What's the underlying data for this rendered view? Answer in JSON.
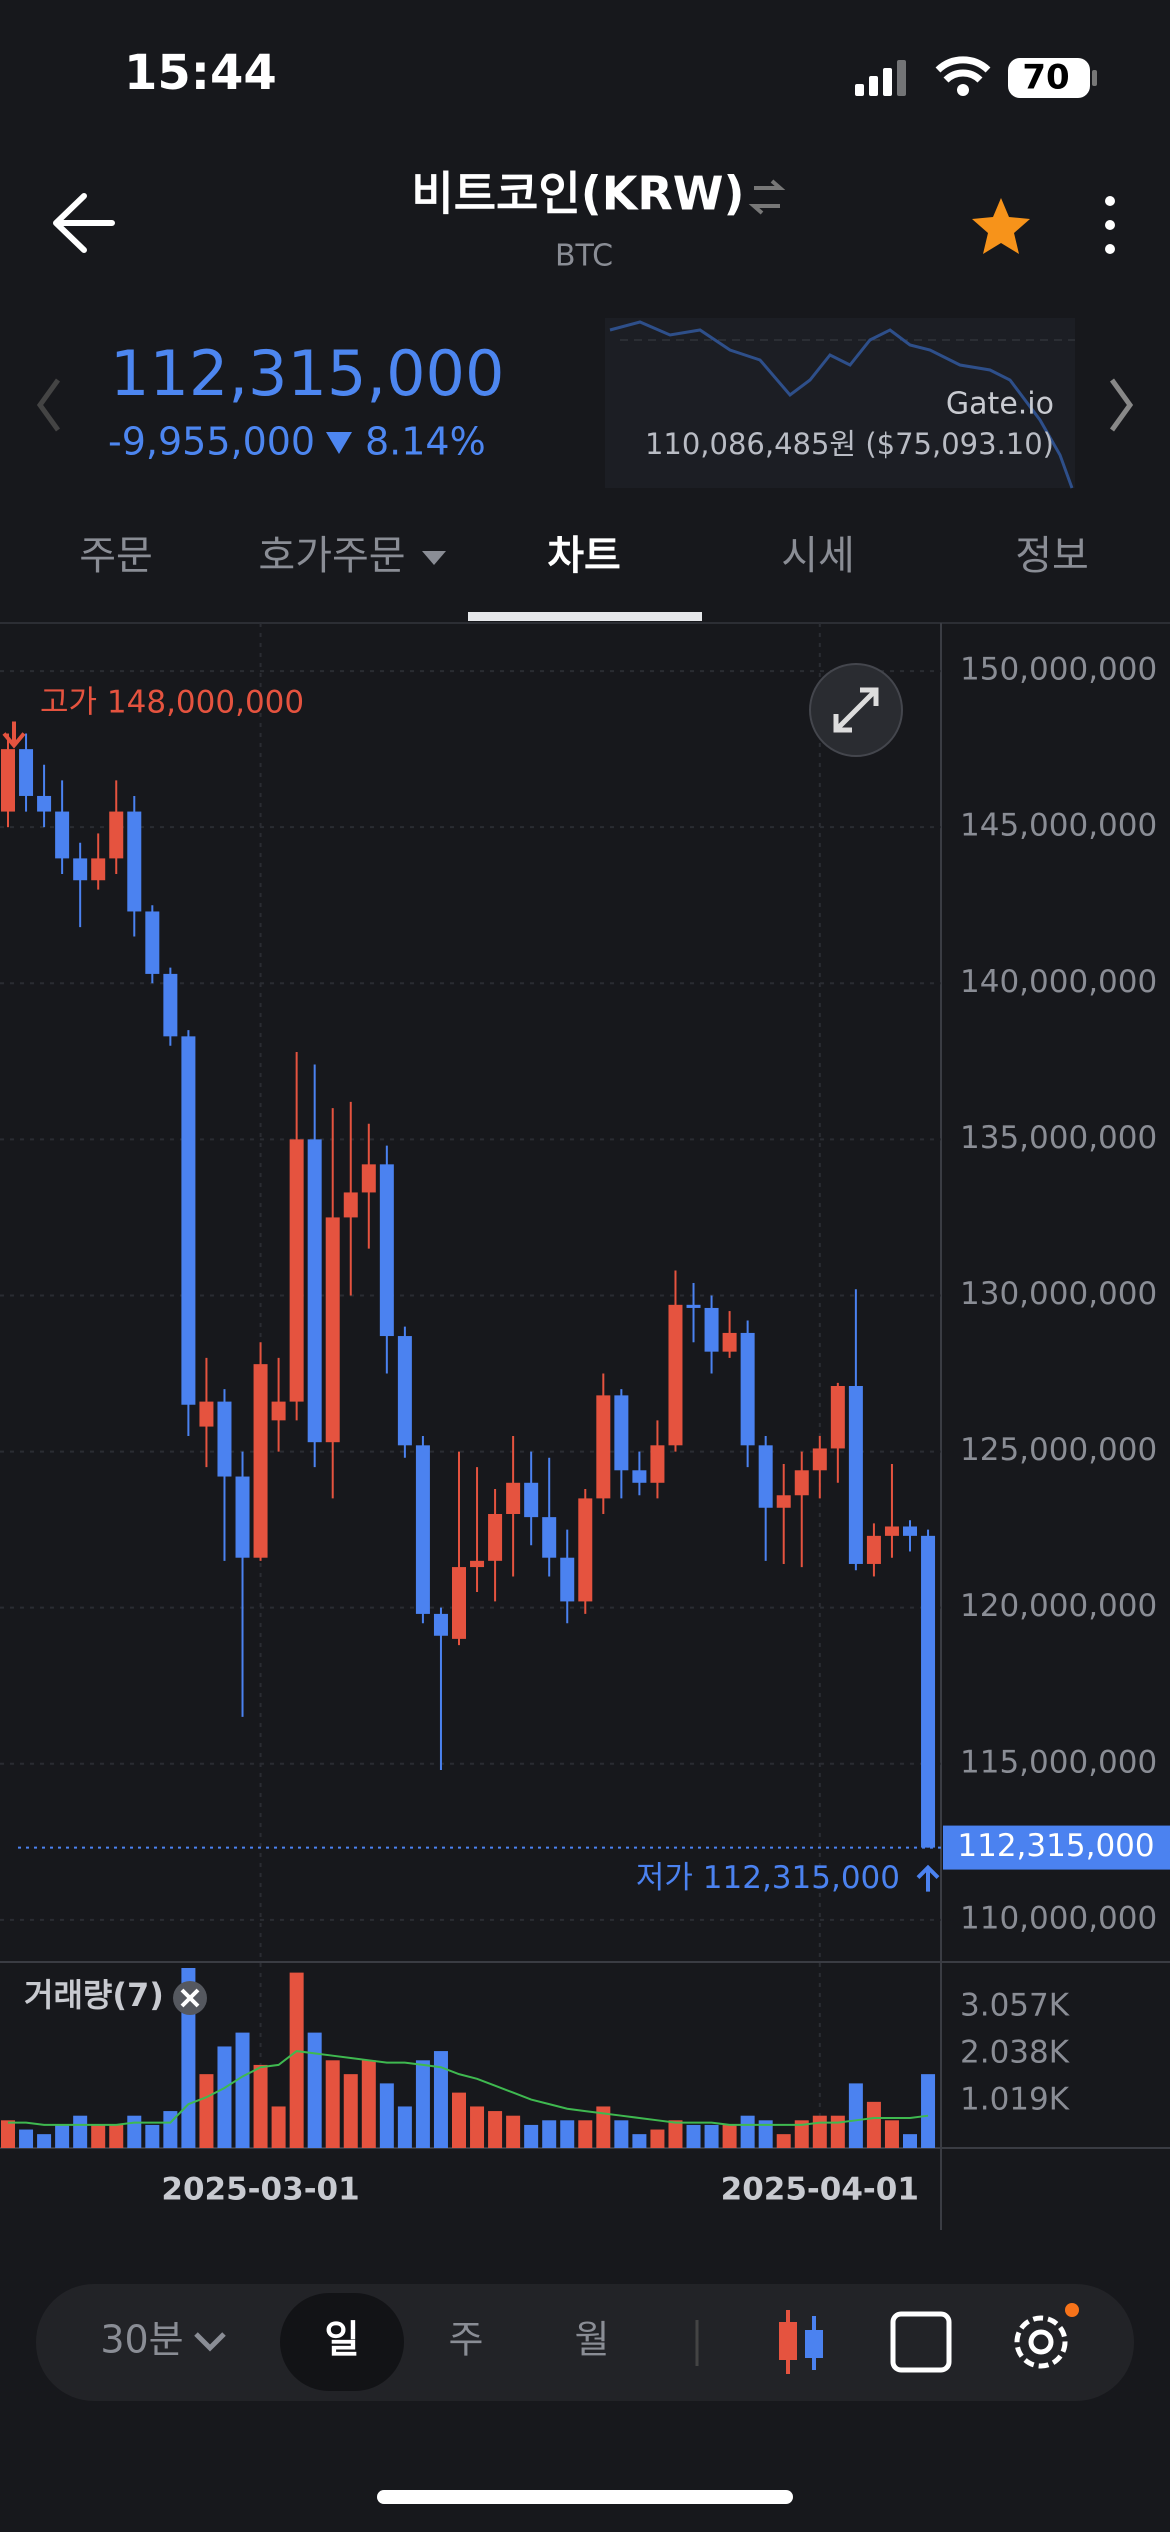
{
  "status_bar": {
    "time": "15:44",
    "battery": "70"
  },
  "header": {
    "title": "비트코인(KRW)",
    "subtitle": "BTC"
  },
  "price": {
    "current": "112,315,000",
    "change": "-9,955,000",
    "change_pct": "8.14%",
    "exchange": "Gate.io",
    "exchange_price": "110,086,485원 ($75,093.10)"
  },
  "tabs": [
    "주문",
    "호가주문",
    "차트",
    "시세",
    "정보"
  ],
  "toolbar": {
    "interval": "30분",
    "periods": [
      "일",
      "주",
      "월"
    ]
  },
  "chart_data": {
    "type": "candlestick",
    "categories": [
      null,
      null,
      null,
      null,
      null,
      null,
      null,
      null,
      null,
      null,
      null,
      null,
      null,
      null,
      "2025-03-01",
      null,
      null,
      null,
      null,
      null,
      null,
      null,
      null,
      null,
      null,
      null,
      null,
      null,
      null,
      null,
      null,
      null,
      null,
      null,
      null,
      null,
      null,
      null,
      null,
      null,
      null,
      null,
      null,
      null,
      null,
      "2025-04-01",
      null,
      null,
      null,
      null,
      null,
      null
    ],
    "open": [
      145500000,
      147500000,
      146000000,
      145500000,
      144000000,
      143300000,
      144000000,
      145500000,
      142300000,
      140300000,
      138300000,
      125800000,
      126600000,
      124200000,
      121600000,
      126000000,
      126600000,
      135000000,
      125300000,
      132500000,
      133300000,
      134200000,
      128700000,
      125200000,
      119800000,
      119000000,
      121300000,
      121500000,
      123000000,
      124000000,
      122900000,
      121600000,
      120200000,
      123500000,
      126800000,
      124400000,
      124000000,
      125200000,
      129700000,
      129600000,
      128200000,
      128800000,
      125200000,
      123200000,
      123600000,
      124400000,
      125100000,
      127100000,
      121400000,
      122300000,
      122600000,
      122300000
    ],
    "high": [
      148000000,
      148000000,
      147000000,
      146500000,
      144500000,
      144800000,
      146500000,
      146000000,
      142500000,
      140500000,
      138500000,
      128000000,
      127000000,
      125000000,
      128500000,
      128000000,
      137800000,
      137400000,
      136000000,
      136200000,
      135500000,
      134800000,
      129000000,
      125500000,
      120000000,
      125000000,
      124500000,
      123800000,
      125500000,
      125000000,
      124800000,
      122500000,
      123800000,
      127500000,
      127000000,
      125000000,
      126000000,
      130800000,
      130400000,
      130000000,
      129500000,
      129200000,
      125500000,
      124600000,
      125000000,
      125500000,
      127200000,
      130200000,
      122700000,
      124600000,
      122800000,
      122500000
    ],
    "low": [
      145000000,
      145500000,
      145000000,
      143500000,
      141800000,
      143000000,
      143500000,
      141500000,
      140000000,
      138000000,
      125500000,
      124500000,
      121500000,
      116500000,
      121500000,
      125000000,
      126000000,
      124500000,
      123500000,
      130000000,
      131500000,
      127500000,
      124800000,
      119500000,
      114800000,
      118800000,
      120500000,
      120200000,
      121000000,
      122000000,
      121000000,
      119500000,
      119800000,
      123000000,
      123500000,
      123600000,
      123500000,
      125000000,
      128500000,
      127500000,
      128000000,
      124500000,
      121500000,
      121400000,
      121300000,
      123500000,
      124000000,
      121200000,
      121000000,
      121600000,
      121800000,
      112315000
    ],
    "close": [
      147500000,
      146000000,
      145500000,
      144000000,
      143300000,
      144000000,
      145500000,
      142300000,
      140300000,
      138300000,
      126500000,
      126600000,
      124200000,
      121600000,
      127800000,
      126600000,
      135000000,
      125300000,
      132500000,
      133300000,
      134200000,
      128700000,
      125200000,
      119800000,
      119100000,
      121300000,
      121500000,
      123000000,
      124000000,
      122900000,
      121600000,
      120200000,
      123500000,
      126800000,
      124400000,
      124000000,
      125200000,
      129700000,
      129600000,
      128200000,
      128800000,
      125200000,
      123200000,
      123600000,
      124400000,
      125100000,
      127100000,
      121400000,
      122300000,
      122600000,
      122300000,
      112315000
    ],
    "up_color": "#e5533f",
    "down_color": "#4b82f0",
    "ylim": [
      108650000,
      151540000
    ],
    "yticks": [
      {
        "value": 110000000,
        "label": "110,000,000"
      },
      {
        "value": 115000000,
        "label": "115,000,000"
      },
      {
        "value": 120000000,
        "label": "120,000,000"
      },
      {
        "value": 125000000,
        "label": "125,000,000"
      },
      {
        "value": 130000000,
        "label": "130,000,000"
      },
      {
        "value": 135000000,
        "label": "135,000,000"
      },
      {
        "value": 140000000,
        "label": "140,000,000"
      },
      {
        "value": 145000000,
        "label": "145,000,000"
      },
      {
        "value": 150000000,
        "label": "150,000,000"
      }
    ],
    "grid": true,
    "high_annotation": {
      "value": 148000000,
      "label": "고가 148,000,000"
    },
    "low_annotation": {
      "value": 112315000,
      "label": "저가 112,315,000"
    },
    "last_price": {
      "value": 112315000,
      "label": "112,315,000"
    },
    "volume": {
      "title": "거래량(7)",
      "values": [
        0.6,
        0.4,
        0.3,
        0.5,
        0.7,
        0.5,
        0.5,
        0.7,
        0.5,
        0.8,
        3.9,
        1.6,
        2.2,
        2.5,
        1.8,
        0.9,
        3.8,
        2.5,
        1.9,
        1.6,
        1.9,
        1.4,
        0.9,
        1.9,
        2.1,
        1.2,
        0.9,
        0.8,
        0.7,
        0.5,
        0.6,
        0.6,
        0.6,
        0.9,
        0.6,
        0.3,
        0.4,
        0.6,
        0.5,
        0.5,
        0.5,
        0.7,
        0.6,
        0.3,
        0.6,
        0.7,
        0.7,
        1.4,
        1.0,
        0.6,
        0.3,
        1.6
      ],
      "ma": [
        0.55,
        0.55,
        0.5,
        0.5,
        0.5,
        0.5,
        0.5,
        0.55,
        0.55,
        0.55,
        0.95,
        1.1,
        1.3,
        1.55,
        1.75,
        1.8,
        2.1,
        2.05,
        2.0,
        1.95,
        1.9,
        1.85,
        1.85,
        1.8,
        1.75,
        1.6,
        1.5,
        1.35,
        1.2,
        1.05,
        0.95,
        0.85,
        0.8,
        0.75,
        0.7,
        0.65,
        0.6,
        0.55,
        0.55,
        0.55,
        0.5,
        0.5,
        0.5,
        0.5,
        0.5,
        0.55,
        0.55,
        0.6,
        0.65,
        0.65,
        0.65,
        0.7
      ],
      "ma_color": "#3fb950",
      "ylim": [
        0,
        4.03
      ],
      "yticks": [
        {
          "value": 1.019,
          "label": "1.019K"
        },
        {
          "value": 2.038,
          "label": "2.038K"
        },
        {
          "value": 3.057,
          "label": "3.057K"
        }
      ]
    }
  }
}
